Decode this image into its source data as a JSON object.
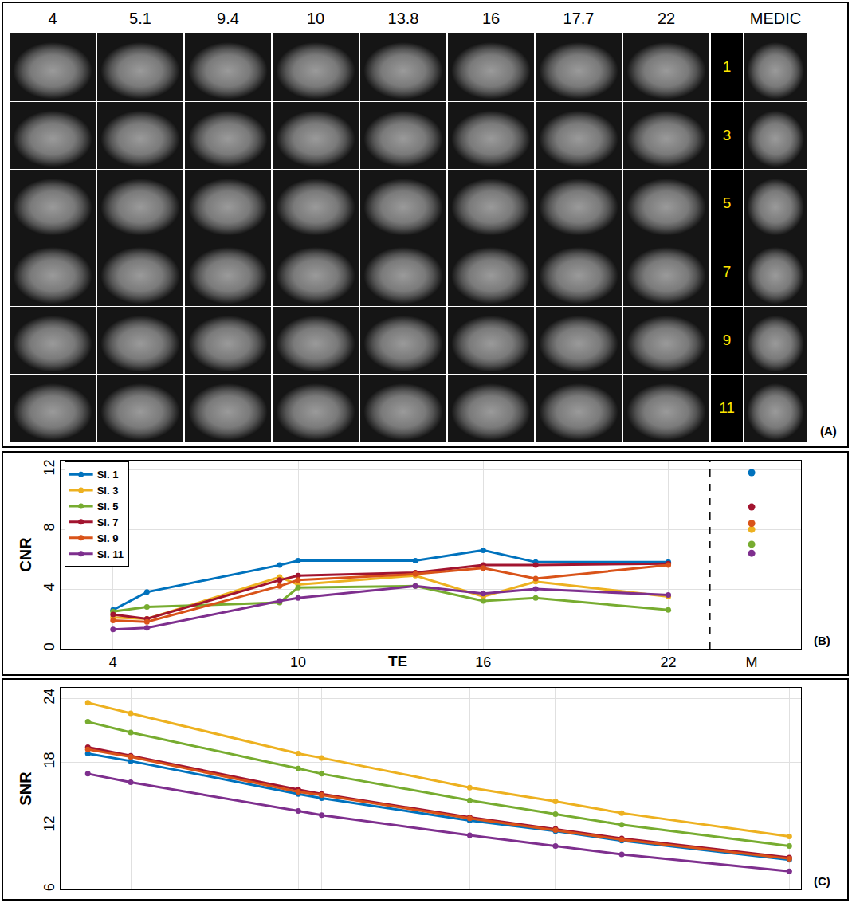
{
  "image_grid": {
    "columns": [
      "4",
      "5.1",
      "9.4",
      "10",
      "13.8",
      "16",
      "17.7",
      "22"
    ],
    "extra_column": "MEDIC",
    "rows": [
      "1",
      "3",
      "5",
      "7",
      "9",
      "11"
    ],
    "label": "(A)"
  },
  "chart_data": [
    {
      "type": "line",
      "label": "(B)",
      "y_label": "CNR",
      "x_label": "TE",
      "x": [
        4,
        5.1,
        9.4,
        10,
        13.8,
        16,
        17.7,
        22
      ],
      "xlim": [
        2.3,
        26.3
      ],
      "xticks": [
        4,
        10,
        16,
        22,
        {
          "value": 24.7,
          "label": "M"
        }
      ],
      "ylim": [
        0,
        12.6
      ],
      "yticks": [
        0,
        4,
        8,
        12
      ],
      "grid": true,
      "legend": "top-left",
      "marker": "circle",
      "series": [
        {
          "name": "Sl. 1",
          "color": "#0072BD",
          "values": [
            2.6,
            3.8,
            5.6,
            5.9,
            5.9,
            6.6,
            5.8,
            5.8
          ],
          "medic": 11.8
        },
        {
          "name": "Sl. 3",
          "color": "#EDB120",
          "values": [
            2.1,
            2.0,
            4.8,
            4.3,
            4.9,
            3.5,
            4.5,
            3.5
          ],
          "medic": 8.0
        },
        {
          "name": "Sl. 5",
          "color": "#77AC30",
          "values": [
            2.5,
            2.8,
            3.1,
            4.1,
            4.2,
            3.2,
            3.4,
            2.6
          ],
          "medic": 7.0
        },
        {
          "name": "Sl. 7",
          "color": "#A2142F",
          "values": [
            2.3,
            2.0,
            4.6,
            4.9,
            5.1,
            5.6,
            5.6,
            5.7
          ],
          "medic": 9.5
        },
        {
          "name": "Sl. 9",
          "color": "#D95319",
          "values": [
            1.9,
            1.8,
            4.2,
            4.6,
            5.0,
            5.4,
            4.7,
            5.6
          ],
          "medic": 8.4
        },
        {
          "name": "Sl. 11",
          "color": "#7E2F8E",
          "values": [
            1.3,
            1.4,
            3.2,
            3.4,
            4.2,
            3.7,
            4.0,
            3.6
          ],
          "medic": 6.4
        }
      ]
    },
    {
      "type": "line",
      "label": "(C)",
      "y_label": "SNR",
      "x": [
        4,
        5.1,
        9.4,
        10,
        13.8,
        16,
        17.7,
        22
      ],
      "xlim": [
        3.3,
        22.3
      ],
      "xticks": [
        4,
        5.1,
        9.4,
        10,
        13.8,
        16,
        17.7,
        22
      ],
      "ylim": [
        6,
        25
      ],
      "yticks": [
        6,
        12,
        18,
        24
      ],
      "grid": true,
      "tick_labels": "y",
      "marker": "circle",
      "series": [
        {
          "name": "Sl. 1",
          "color": "#0072BD",
          "values": [
            18.8,
            18.1,
            15.0,
            14.6,
            12.5,
            11.5,
            10.6,
            8.8
          ]
        },
        {
          "name": "Sl. 3",
          "color": "#EDB120",
          "values": [
            23.6,
            22.6,
            18.8,
            18.4,
            15.6,
            14.3,
            13.2,
            11.0
          ]
        },
        {
          "name": "Sl. 5",
          "color": "#77AC30",
          "values": [
            21.8,
            20.8,
            17.4,
            16.9,
            14.4,
            13.1,
            12.1,
            10.1
          ]
        },
        {
          "name": "Sl. 7",
          "color": "#A2142F",
          "values": [
            19.4,
            18.6,
            15.4,
            15.0,
            12.8,
            11.7,
            10.8,
            9.0
          ]
        },
        {
          "name": "Sl. 9",
          "color": "#D95319",
          "values": [
            19.2,
            18.5,
            15.2,
            14.9,
            12.7,
            11.6,
            10.7,
            8.9
          ]
        },
        {
          "name": "Sl. 11",
          "color": "#7E2F8E",
          "values": [
            16.9,
            16.1,
            13.4,
            13.0,
            11.1,
            10.1,
            9.3,
            7.7
          ]
        }
      ]
    }
  ]
}
